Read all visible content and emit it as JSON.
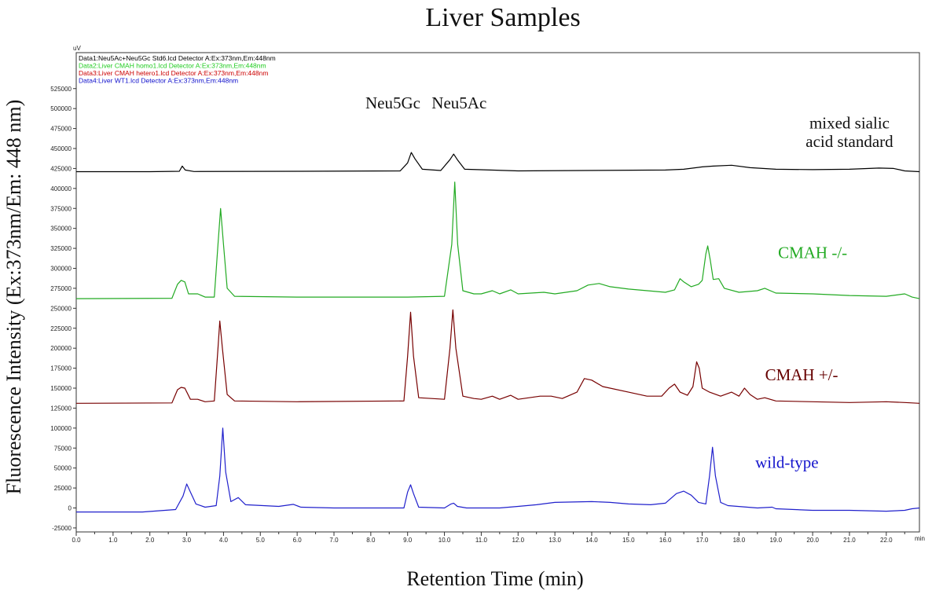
{
  "chart_data": {
    "type": "line",
    "title": "Liver Samples",
    "xlabel": "Retention Time (min)",
    "ylabel": "Fluorescence Intensity (Ex:373nm/Em: 448 nm)",
    "y_unit": "uV",
    "x_unit": "min",
    "xlim": [
      0,
      22.9
    ],
    "ylim": [
      -30000,
      570000
    ],
    "x_ticks": [
      "0.0",
      "1.0",
      "2.0",
      "3.0",
      "4.0",
      "5.0",
      "6.0",
      "7.0",
      "8.0",
      "9.0",
      "10.0",
      "11.0",
      "12.0",
      "13.0",
      "14.0",
      "15.0",
      "16.0",
      "17.0",
      "18.0",
      "19.0",
      "20.0",
      "21.0",
      "22.0"
    ],
    "y_ticks": [
      "-25000",
      "0",
      "25000",
      "50000",
      "75000",
      "100000",
      "125000",
      "150000",
      "175000",
      "200000",
      "225000",
      "250000",
      "275000",
      "300000",
      "325000",
      "350000",
      "375000",
      "400000",
      "425000",
      "450000",
      "475000",
      "500000",
      "525000"
    ],
    "grid": false,
    "legend_position": "top-left",
    "legend": [
      {
        "text": "Data1:Neu5Ac+Neu5Gc Std6.lcd Detector A:Ex:373nm,Em:448nm",
        "color": "#000000"
      },
      {
        "text": "Data2:Liver CMAH homo1.lcd Detector A:Ex:373nm,Em:448nm",
        "color": "#22cc22"
      },
      {
        "text": "Data3:Liver CMAH hetero1.lcd Detector A:Ex:373nm,Em:448nm",
        "color": "#cc0000"
      },
      {
        "text": "Data4:Liver WT1.lcd Detector A:Ex:373nm,Em:448nm",
        "color": "#1010cc"
      }
    ],
    "peak_labels": [
      {
        "text": "Neu5Gc",
        "x": 8.6,
        "y": 500000
      },
      {
        "text": "Neu5Ac",
        "x": 10.4,
        "y": 500000
      }
    ],
    "series": [
      {
        "name": "mixed sialic acid standard",
        "color": "#000000",
        "baseline": 421000,
        "label_lines": [
          "mixed sialic",
          "acid standard"
        ],
        "label_color": "#111111",
        "label_x": 21.0,
        "label_y": [
          475000,
          452000
        ],
        "points": [
          [
            0,
            421000
          ],
          [
            2.0,
            421000
          ],
          [
            2.8,
            421500
          ],
          [
            2.88,
            428000
          ],
          [
            2.96,
            423000
          ],
          [
            3.2,
            421200
          ],
          [
            6.0,
            421500
          ],
          [
            8.8,
            422000
          ],
          [
            9.0,
            432000
          ],
          [
            9.1,
            445000
          ],
          [
            9.2,
            437000
          ],
          [
            9.4,
            424000
          ],
          [
            9.9,
            422500
          ],
          [
            10.15,
            436000
          ],
          [
            10.25,
            443000
          ],
          [
            10.35,
            436000
          ],
          [
            10.55,
            424000
          ],
          [
            12.0,
            422000
          ],
          [
            16.0,
            423000
          ],
          [
            16.5,
            424000
          ],
          [
            17.0,
            427000
          ],
          [
            17.3,
            428000
          ],
          [
            17.8,
            429000
          ],
          [
            18.3,
            426000
          ],
          [
            19.0,
            424000
          ],
          [
            20.0,
            423500
          ],
          [
            21.0,
            424000
          ],
          [
            21.8,
            425500
          ],
          [
            22.2,
            425000
          ],
          [
            22.5,
            422000
          ],
          [
            22.9,
            421000
          ]
        ]
      },
      {
        "name": "CMAH -/-",
        "color": "#22aa22",
        "baseline": 262000,
        "label_lines": [
          "CMAH -/-"
        ],
        "label_color": "#22aa22",
        "label_x": 20.0,
        "label_y": [
          313000
        ],
        "points": [
          [
            0,
            262000
          ],
          [
            2.6,
            262500
          ],
          [
            2.75,
            280000
          ],
          [
            2.85,
            285000
          ],
          [
            2.95,
            283000
          ],
          [
            3.05,
            268000
          ],
          [
            3.3,
            268000
          ],
          [
            3.5,
            264000
          ],
          [
            3.75,
            264000
          ],
          [
            3.85,
            330000
          ],
          [
            3.92,
            375000
          ],
          [
            4.0,
            330000
          ],
          [
            4.1,
            275000
          ],
          [
            4.3,
            265000
          ],
          [
            6.0,
            264000
          ],
          [
            9.0,
            264000
          ],
          [
            10.0,
            265000
          ],
          [
            10.2,
            330000
          ],
          [
            10.28,
            408000
          ],
          [
            10.36,
            330000
          ],
          [
            10.5,
            272000
          ],
          [
            10.8,
            268000
          ],
          [
            11.0,
            268000
          ],
          [
            11.3,
            272000
          ],
          [
            11.5,
            268000
          ],
          [
            11.8,
            273000
          ],
          [
            12.0,
            268000
          ],
          [
            12.7,
            270000
          ],
          [
            13.0,
            268000
          ],
          [
            13.6,
            272000
          ],
          [
            13.9,
            279000
          ],
          [
            14.2,
            281000
          ],
          [
            14.5,
            277000
          ],
          [
            15.0,
            274000
          ],
          [
            16.0,
            270000
          ],
          [
            16.25,
            273000
          ],
          [
            16.4,
            287000
          ],
          [
            16.5,
            283000
          ],
          [
            16.7,
            277000
          ],
          [
            16.9,
            280000
          ],
          [
            17.0,
            285000
          ],
          [
            17.1,
            318000
          ],
          [
            17.15,
            328000
          ],
          [
            17.22,
            310000
          ],
          [
            17.3,
            286000
          ],
          [
            17.45,
            287000
          ],
          [
            17.6,
            275000
          ],
          [
            18.0,
            270000
          ],
          [
            18.5,
            272000
          ],
          [
            18.7,
            275000
          ],
          [
            19.0,
            269000
          ],
          [
            20.0,
            268000
          ],
          [
            21.0,
            266000
          ],
          [
            22.0,
            265000
          ],
          [
            22.5,
            268000
          ],
          [
            22.7,
            264000
          ],
          [
            22.9,
            262000
          ]
        ]
      },
      {
        "name": "CMAH +/-",
        "color": "#770000",
        "baseline": 131000,
        "label_lines": [
          "CMAH +/-"
        ],
        "label_color": "#660000",
        "label_x": 19.7,
        "label_y": [
          160000
        ],
        "points": [
          [
            0,
            131000
          ],
          [
            2.6,
            131500
          ],
          [
            2.75,
            148000
          ],
          [
            2.85,
            151000
          ],
          [
            2.95,
            150000
          ],
          [
            3.1,
            136000
          ],
          [
            3.3,
            136000
          ],
          [
            3.5,
            133000
          ],
          [
            3.75,
            134000
          ],
          [
            3.85,
            200000
          ],
          [
            3.9,
            234000
          ],
          [
            3.97,
            200000
          ],
          [
            4.1,
            142000
          ],
          [
            4.3,
            134000
          ],
          [
            6.0,
            133000
          ],
          [
            8.9,
            134000
          ],
          [
            9.0,
            190000
          ],
          [
            9.08,
            245000
          ],
          [
            9.16,
            190000
          ],
          [
            9.3,
            138000
          ],
          [
            10.0,
            136000
          ],
          [
            10.15,
            200000
          ],
          [
            10.23,
            248000
          ],
          [
            10.31,
            200000
          ],
          [
            10.5,
            140000
          ],
          [
            10.8,
            137000
          ],
          [
            11.0,
            136000
          ],
          [
            11.3,
            140000
          ],
          [
            11.5,
            136000
          ],
          [
            11.8,
            141000
          ],
          [
            12.0,
            136000
          ],
          [
            12.6,
            140000
          ],
          [
            12.9,
            140000
          ],
          [
            13.2,
            137000
          ],
          [
            13.6,
            145000
          ],
          [
            13.8,
            162000
          ],
          [
            14.0,
            160000
          ],
          [
            14.3,
            152000
          ],
          [
            15.0,
            145000
          ],
          [
            15.5,
            140000
          ],
          [
            15.9,
            140000
          ],
          [
            16.1,
            150000
          ],
          [
            16.25,
            155000
          ],
          [
            16.4,
            145000
          ],
          [
            16.6,
            141000
          ],
          [
            16.75,
            152000
          ],
          [
            16.85,
            183000
          ],
          [
            16.92,
            175000
          ],
          [
            17.0,
            150000
          ],
          [
            17.2,
            145000
          ],
          [
            17.5,
            140000
          ],
          [
            17.8,
            145000
          ],
          [
            18.0,
            140000
          ],
          [
            18.15,
            150000
          ],
          [
            18.3,
            142000
          ],
          [
            18.5,
            136000
          ],
          [
            18.7,
            138000
          ],
          [
            19.0,
            134000
          ],
          [
            20.0,
            133000
          ],
          [
            21.0,
            132000
          ],
          [
            22.0,
            133000
          ],
          [
            22.5,
            132000
          ],
          [
            22.9,
            131000
          ]
        ]
      },
      {
        "name": "wild-type",
        "color": "#2020cc",
        "baseline": -5000,
        "label_lines": [
          "wild-type"
        ],
        "label_color": "#1515cc",
        "label_x": 19.3,
        "label_y": [
          50000
        ],
        "points": [
          [
            0,
            -5000
          ],
          [
            1.8,
            -5000
          ],
          [
            2.7,
            -2000
          ],
          [
            2.9,
            15000
          ],
          [
            3.0,
            30000
          ],
          [
            3.1,
            20000
          ],
          [
            3.25,
            5000
          ],
          [
            3.5,
            1000
          ],
          [
            3.8,
            3000
          ],
          [
            3.9,
            40000
          ],
          [
            3.98,
            100000
          ],
          [
            4.06,
            45000
          ],
          [
            4.2,
            8000
          ],
          [
            4.4,
            13000
          ],
          [
            4.6,
            4000
          ],
          [
            5.5,
            2000
          ],
          [
            5.9,
            4500
          ],
          [
            6.1,
            1000
          ],
          [
            7.0,
            0
          ],
          [
            8.9,
            0
          ],
          [
            9.0,
            20000
          ],
          [
            9.08,
            29000
          ],
          [
            9.16,
            18000
          ],
          [
            9.3,
            1000
          ],
          [
            10.0,
            0
          ],
          [
            10.18,
            5000
          ],
          [
            10.25,
            6000
          ],
          [
            10.35,
            2000
          ],
          [
            10.6,
            0
          ],
          [
            11.5,
            0
          ],
          [
            12.0,
            2000
          ],
          [
            12.5,
            4000
          ],
          [
            13.0,
            7000
          ],
          [
            14.0,
            8000
          ],
          [
            14.5,
            7000
          ],
          [
            15.0,
            5000
          ],
          [
            15.6,
            4000
          ],
          [
            16.0,
            6000
          ],
          [
            16.3,
            18000
          ],
          [
            16.5,
            21000
          ],
          [
            16.7,
            16000
          ],
          [
            16.9,
            7000
          ],
          [
            17.1,
            5000
          ],
          [
            17.2,
            40000
          ],
          [
            17.28,
            76000
          ],
          [
            17.36,
            40000
          ],
          [
            17.5,
            7000
          ],
          [
            17.7,
            3000
          ],
          [
            18.5,
            0
          ],
          [
            18.9,
            1000
          ],
          [
            19.0,
            -1000
          ],
          [
            20.0,
            -3000
          ],
          [
            21.0,
            -3000
          ],
          [
            22.0,
            -4000
          ],
          [
            22.5,
            -3000
          ],
          [
            22.7,
            -1000
          ],
          [
            22.9,
            0
          ]
        ]
      }
    ]
  }
}
